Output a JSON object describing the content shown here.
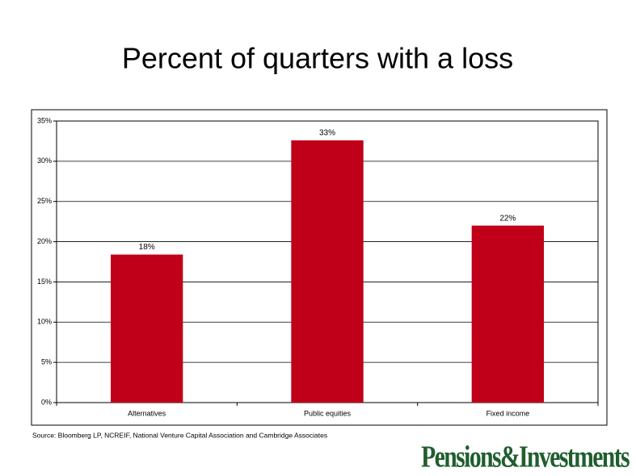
{
  "chart_data": {
    "type": "bar",
    "title": "Percent of quarters with a loss",
    "categories": [
      "Alternatives",
      "Public equities",
      "Fixed income"
    ],
    "values": [
      18.4,
      32.6,
      22.0
    ],
    "value_labels": [
      "18%",
      "33%",
      "22%"
    ],
    "color": "#c00018",
    "ylim": [
      0,
      35
    ],
    "yticks": [
      {
        "value": 0,
        "label": "0%"
      },
      {
        "value": 5,
        "label": "5%"
      },
      {
        "value": 10,
        "label": "10%"
      },
      {
        "value": 15,
        "label": "15%"
      },
      {
        "value": 20,
        "label": "20%"
      },
      {
        "value": 25,
        "label": "25%"
      },
      {
        "value": 30,
        "label": "30%"
      },
      {
        "value": 35,
        "label": "35%"
      }
    ],
    "grid": true,
    "source": "Source: Bloomberg LP, NCREIF, National Venture Capital Association and Cambridge Associates",
    "brand": "Pensions&Investments"
  }
}
